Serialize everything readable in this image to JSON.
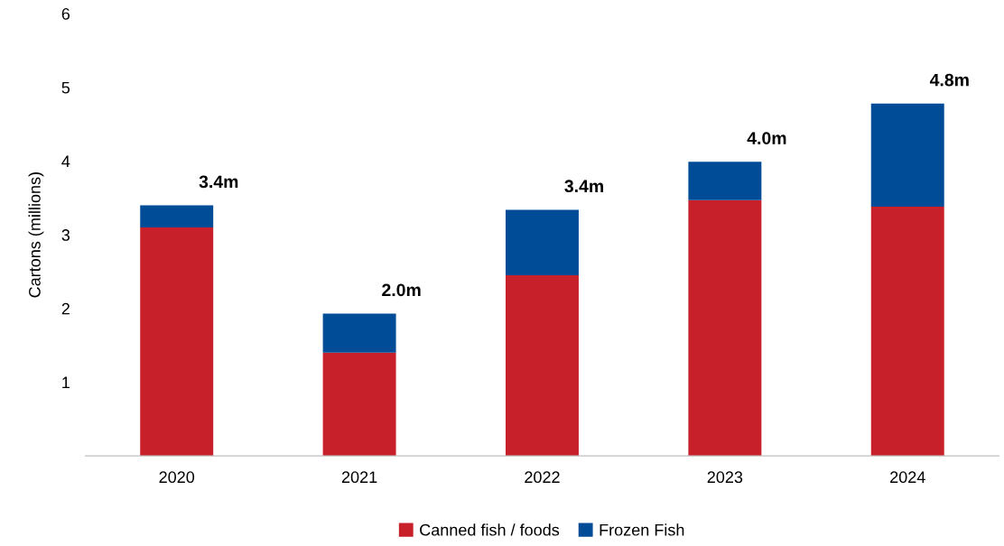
{
  "chart_data": {
    "type": "bar",
    "ylabel": "Cartons (millions)",
    "categories": [
      "2020",
      "2021",
      "2022",
      "2023",
      "2024"
    ],
    "stacked": true,
    "series": [
      {
        "name": "Canned fish / foods",
        "color": "#c8202a",
        "values": [
          3.1,
          1.4,
          2.45,
          3.47,
          3.38
        ]
      },
      {
        "name": "Frozen Fish",
        "color": "#004c97",
        "values": [
          0.3,
          0.53,
          0.89,
          0.52,
          1.4
        ]
      }
    ],
    "totals": [
      "3.4m",
      "2.0m",
      "3.4m",
      "4.0m",
      "4.8m"
    ],
    "ylim": [
      0,
      6
    ],
    "yticks": [
      1,
      2,
      3,
      4,
      5,
      6
    ],
    "grid": false,
    "legend": "bottom"
  }
}
